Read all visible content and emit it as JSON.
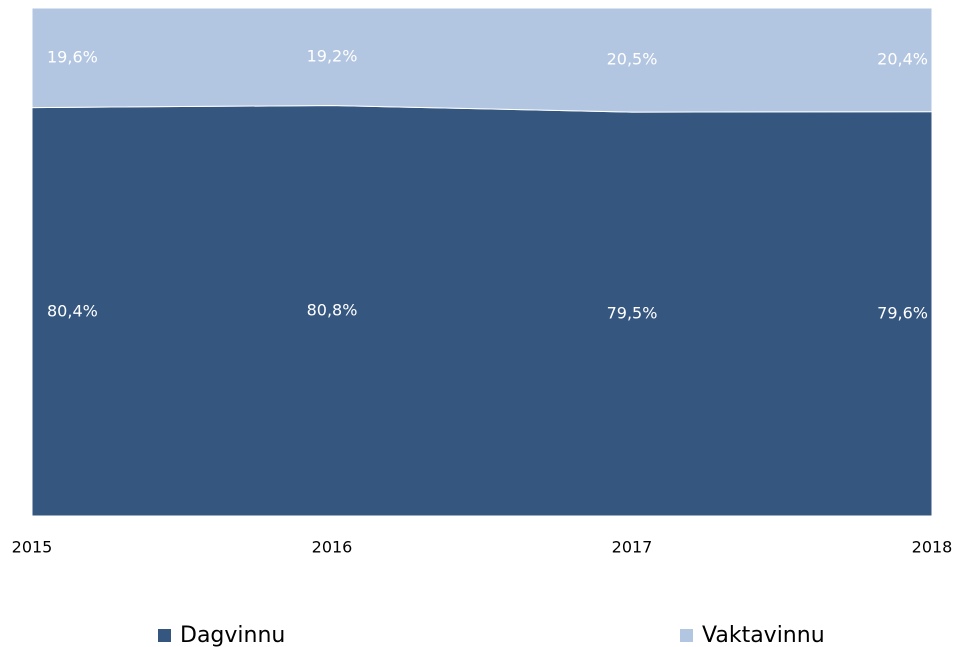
{
  "chart_data": {
    "type": "stacked-area",
    "categories": [
      "2015",
      "2016",
      "2017",
      "2018"
    ],
    "series": [
      {
        "name": "Dagvinnu",
        "color": "#34567f",
        "values": [
          80.4,
          80.8,
          79.5,
          79.6
        ],
        "value_labels": [
          "80,4%",
          "80,8%",
          "79,5%",
          "79,6%"
        ]
      },
      {
        "name": "Vaktavinnu",
        "color": "#b3c6e1",
        "values": [
          19.6,
          19.2,
          20.5,
          20.4
        ],
        "value_labels": [
          "19,6%",
          "19,2%",
          "20,5%",
          "20,4%"
        ]
      }
    ],
    "ylim": [
      0,
      100
    ]
  }
}
